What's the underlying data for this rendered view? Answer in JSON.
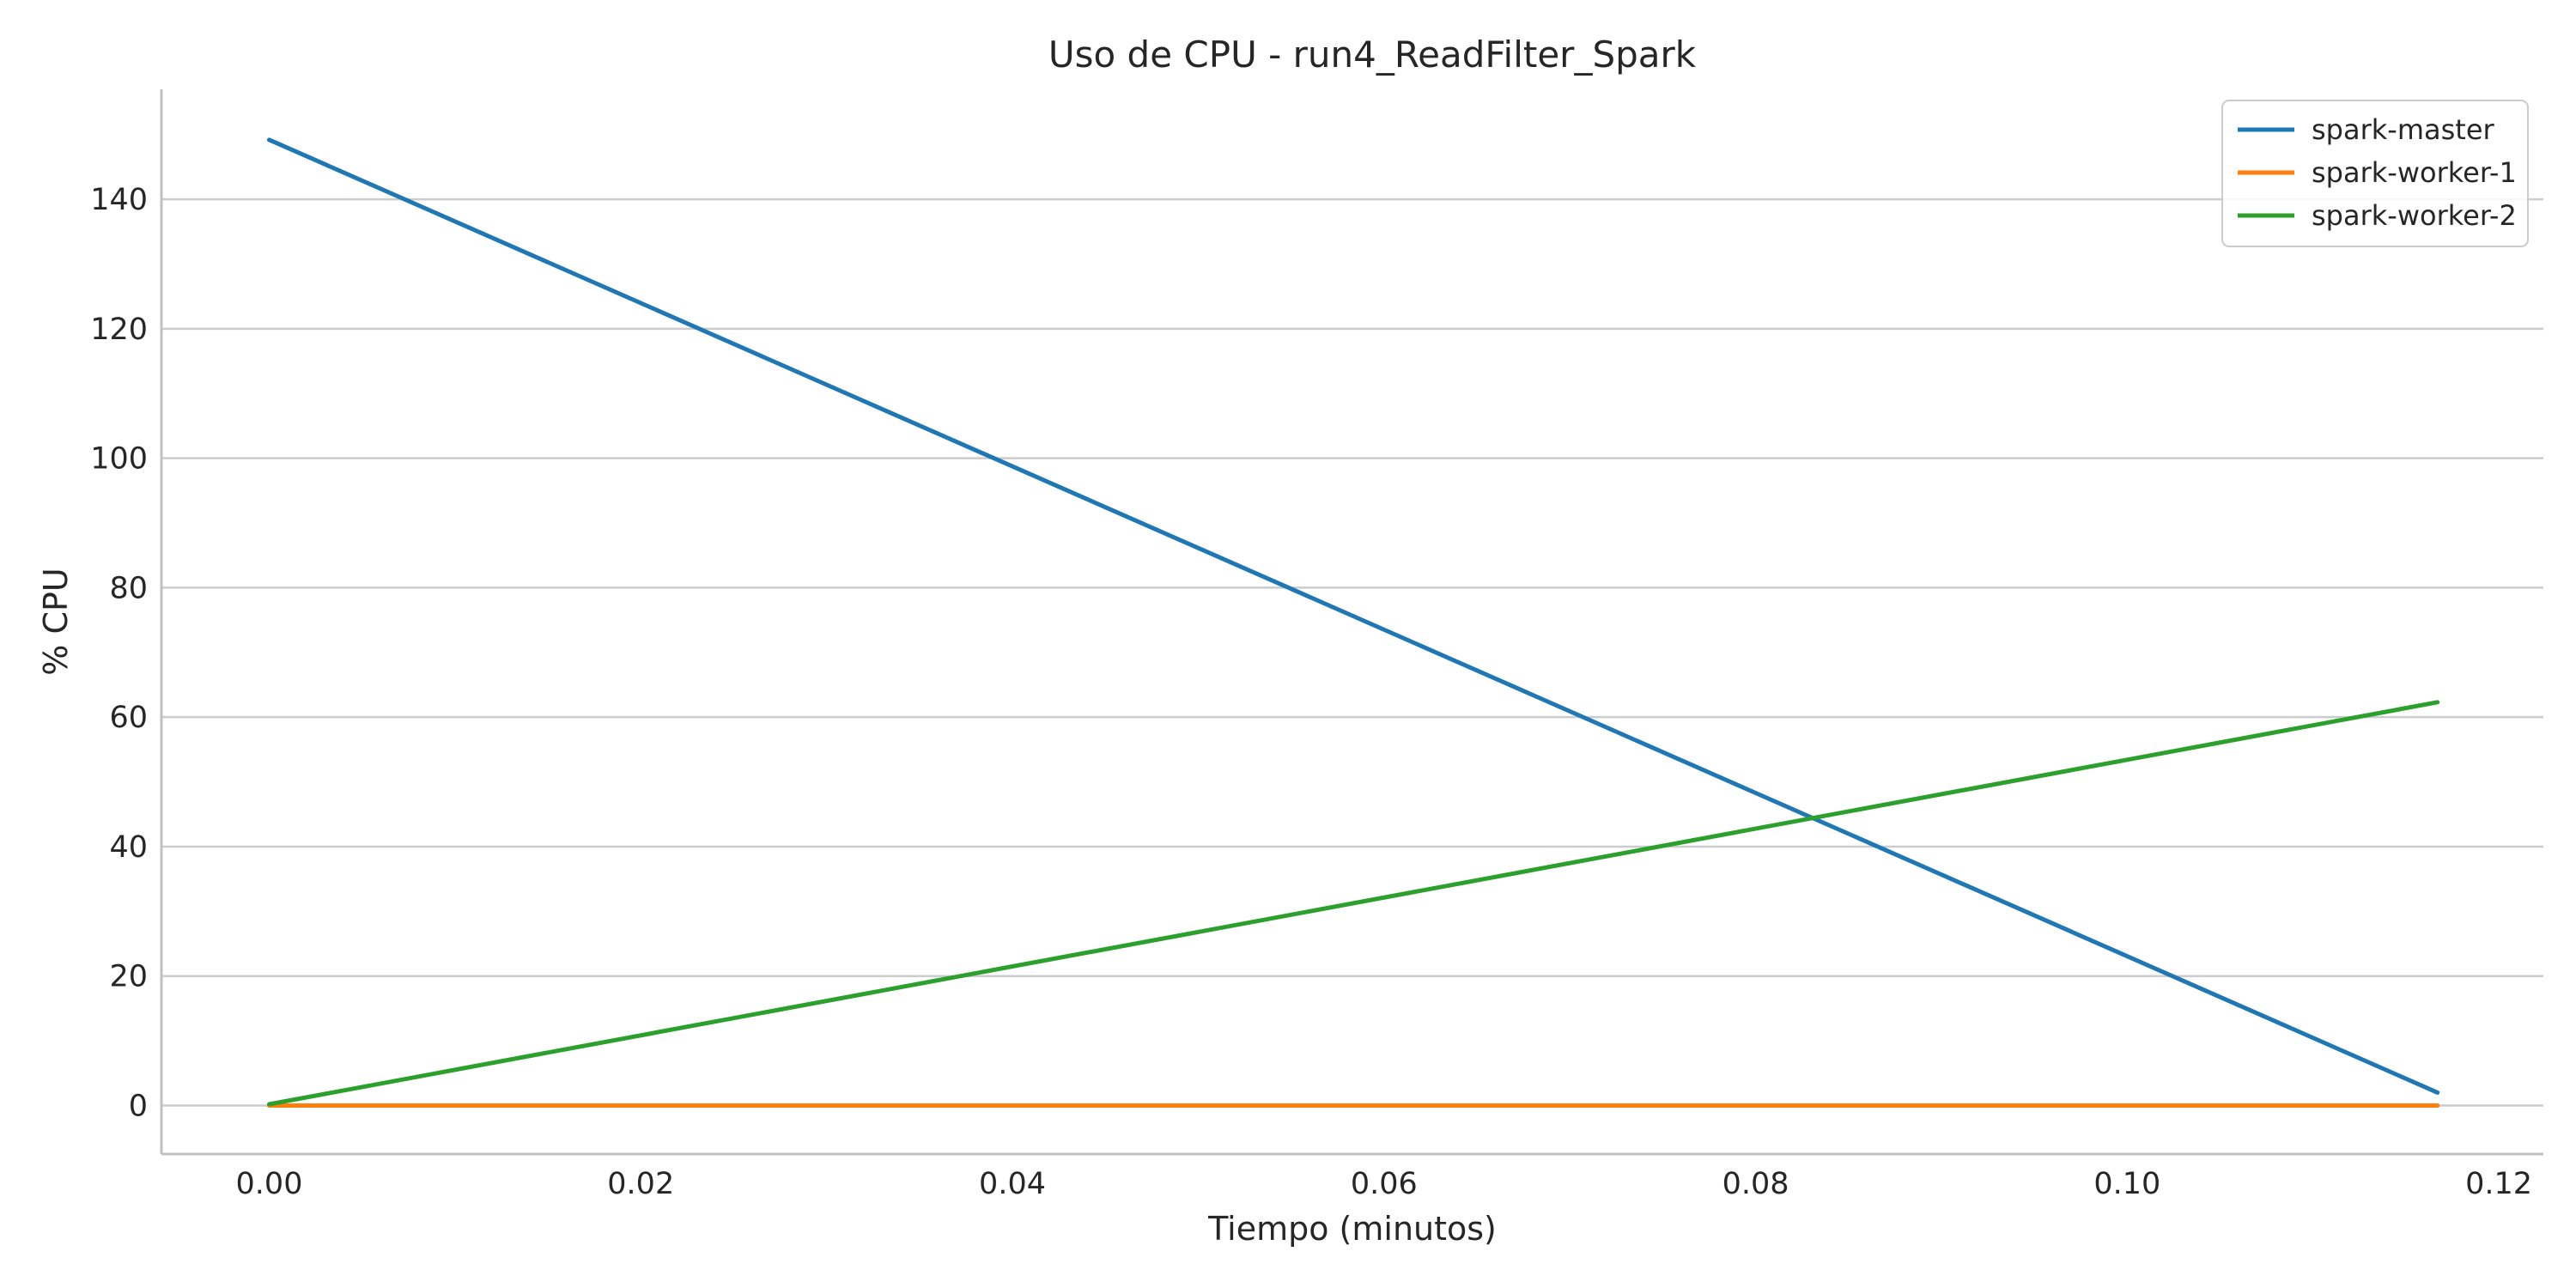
{
  "chart_data": {
    "type": "line",
    "title": "Uso de CPU - run4_ReadFilter_Spark",
    "xlabel": "Tiempo (minutos)",
    "ylabel": "% CPU",
    "xlim": [
      -0.0058,
      0.1224
    ],
    "ylim": [
      -7.5,
      157
    ],
    "xticks": [
      0.0,
      0.02,
      0.04,
      0.06,
      0.08,
      0.1,
      0.12
    ],
    "xtick_labels": [
      "0.00",
      "0.02",
      "0.04",
      "0.06",
      "0.08",
      "0.10",
      "0.12"
    ],
    "yticks": [
      0,
      20,
      40,
      60,
      80,
      100,
      120,
      140
    ],
    "ytick_labels": [
      "0",
      "20",
      "40",
      "60",
      "80",
      "100",
      "120",
      "140"
    ],
    "grid": "horizontal",
    "legend_position": "top-right",
    "series": [
      {
        "name": "spark-master",
        "color": "#1f77b4",
        "x": [
          0.0,
          0.1167
        ],
        "y": [
          149.2,
          2.0
        ]
      },
      {
        "name": "spark-worker-1",
        "color": "#ff7f0e",
        "x": [
          0.0,
          0.1167
        ],
        "y": [
          0.0,
          0.0
        ]
      },
      {
        "name": "spark-worker-2",
        "color": "#2ca02c",
        "x": [
          0.0,
          0.1167
        ],
        "y": [
          0.2,
          62.3
        ]
      }
    ]
  }
}
